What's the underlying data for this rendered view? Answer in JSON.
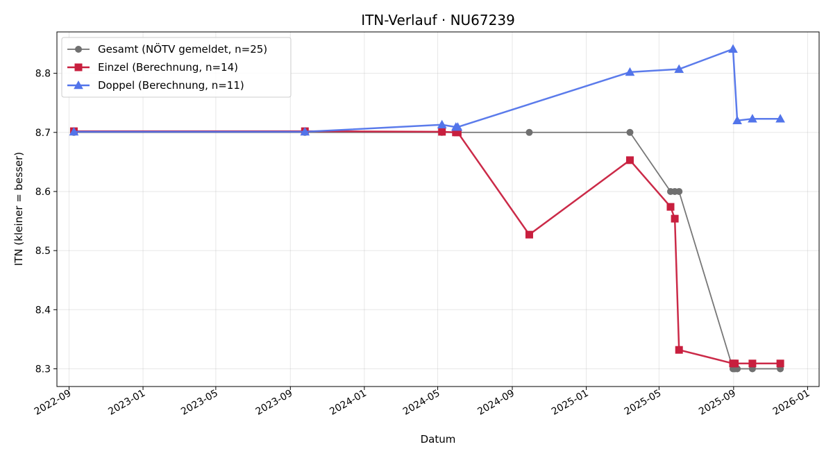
{
  "chart_data": {
    "type": "line",
    "title": "ITN-Verlauf · NU67239",
    "xlabel": "Datum",
    "ylabel": "ITN  (kleiner = besser)",
    "x_axis": "date",
    "xlim": [
      "2022-08-12",
      "2026-01-20"
    ],
    "ylim": [
      8.27,
      8.87
    ],
    "x_ticks": [
      "2022-09",
      "2023-01",
      "2023-05",
      "2023-09",
      "2024-01",
      "2024-05",
      "2024-09",
      "2025-01",
      "2025-05",
      "2025-09",
      "2026-01"
    ],
    "y_ticks": [
      "8.3",
      "8.4",
      "8.5",
      "8.6",
      "8.7",
      "8.8"
    ],
    "grid": true,
    "legend_position": "top-left",
    "series": [
      {
        "name": "Gesamt (NÖTV gemeldet, n=25)",
        "color": "#707070",
        "marker": "circle",
        "points": [
          [
            "2022-09-09",
            8.7
          ],
          [
            "2023-09-25",
            8.7
          ],
          [
            "2024-05-08",
            8.7
          ],
          [
            "2024-05-31",
            8.7
          ],
          [
            "2024-06-03",
            8.7
          ],
          [
            "2024-09-29",
            8.7
          ],
          [
            "2025-03-14",
            8.7
          ],
          [
            "2025-05-20",
            8.6
          ],
          [
            "2025-05-27",
            8.6
          ],
          [
            "2025-06-03",
            8.6
          ],
          [
            "2025-08-31",
            8.3
          ],
          [
            "2025-09-03",
            8.3
          ],
          [
            "2025-09-07",
            8.3
          ],
          [
            "2025-10-02",
            8.3
          ],
          [
            "2025-11-17",
            8.3
          ]
        ]
      },
      {
        "name": "Einzel (Berechnung, n=14)",
        "color": "#c81f3e",
        "marker": "square",
        "points": [
          [
            "2022-09-09",
            8.702
          ],
          [
            "2023-09-25",
            8.702
          ],
          [
            "2024-05-08",
            8.701
          ],
          [
            "2024-05-31",
            8.7
          ],
          [
            "2024-06-03",
            8.7
          ],
          [
            "2024-09-29",
            8.527
          ],
          [
            "2025-03-14",
            8.653
          ],
          [
            "2025-05-20",
            8.574
          ],
          [
            "2025-05-27",
            8.554
          ],
          [
            "2025-06-03",
            8.332
          ],
          [
            "2025-08-31",
            8.309
          ],
          [
            "2025-09-03",
            8.309
          ],
          [
            "2025-10-02",
            8.309
          ],
          [
            "2025-11-17",
            8.309
          ]
        ]
      },
      {
        "name": "Doppel (Berechnung, n=11)",
        "color": "#5274ea",
        "marker": "triangle",
        "points": [
          [
            "2022-09-09",
            8.701
          ],
          [
            "2023-09-25",
            8.701
          ],
          [
            "2024-05-08",
            8.713
          ],
          [
            "2024-05-31",
            8.709
          ],
          [
            "2024-06-03",
            8.709
          ],
          [
            "2025-03-14",
            8.802
          ],
          [
            "2025-06-03",
            8.807
          ],
          [
            "2025-08-31",
            8.841
          ],
          [
            "2025-09-07",
            8.72
          ],
          [
            "2025-10-02",
            8.723
          ],
          [
            "2025-11-17",
            8.723
          ]
        ]
      }
    ]
  }
}
